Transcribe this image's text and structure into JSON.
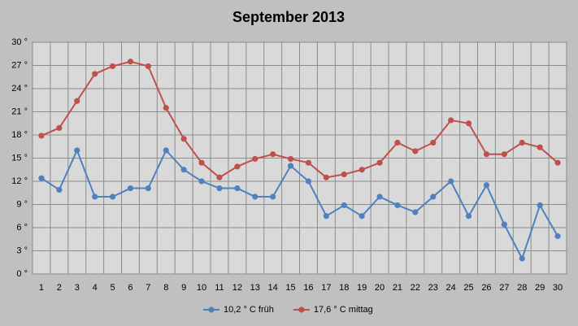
{
  "chart_data": {
    "type": "line",
    "title": "September 2013",
    "categories": [
      "1",
      "2",
      "3",
      "4",
      "5",
      "6",
      "7",
      "8",
      "9",
      "10",
      "11",
      "12",
      "13",
      "14",
      "15",
      "16",
      "17",
      "18",
      "19",
      "20",
      "21",
      "22",
      "23",
      "24",
      "25",
      "26",
      "27",
      "28",
      "29",
      "30"
    ],
    "series": [
      {
        "name": "10,2 ° C früh",
        "color": "#4f81bd",
        "values": [
          12.4,
          10.9,
          16.0,
          10.0,
          10.0,
          11.1,
          11.1,
          16.0,
          13.5,
          12.0,
          11.1,
          11.1,
          10.0,
          10.0,
          14.0,
          12.0,
          7.5,
          8.9,
          7.5,
          10.0,
          8.9,
          8.0,
          10.0,
          12.0,
          7.5,
          11.5,
          6.4,
          2.0,
          8.9,
          4.9
        ]
      },
      {
        "name": "17,6 ° C mittag",
        "color": "#c0504d",
        "values": [
          17.9,
          18.9,
          22.4,
          25.9,
          26.9,
          27.5,
          26.9,
          21.5,
          17.5,
          14.4,
          12.5,
          13.9,
          14.9,
          15.5,
          14.9,
          14.4,
          12.5,
          12.9,
          13.5,
          14.4,
          17.0,
          15.9,
          17.0,
          19.9,
          19.5,
          15.5,
          15.5,
          17.0,
          16.4,
          14.4
        ]
      }
    ],
    "ylim": [
      0,
      30
    ],
    "yticks": [
      {
        "value": 0,
        "label": "0 °"
      },
      {
        "value": 3,
        "label": "3 °"
      },
      {
        "value": 6,
        "label": "6 °"
      },
      {
        "value": 9,
        "label": "9 °"
      },
      {
        "value": 12,
        "label": "12 °"
      },
      {
        "value": 15,
        "label": "15 °"
      },
      {
        "value": 18,
        "label": "18 °"
      },
      {
        "value": 21,
        "label": "21 °"
      },
      {
        "value": 24,
        "label": "24 °"
      },
      {
        "value": 27,
        "label": "27 °"
      },
      {
        "value": 30,
        "label": "30 °"
      }
    ],
    "grid": true,
    "legend": "bottom"
  }
}
